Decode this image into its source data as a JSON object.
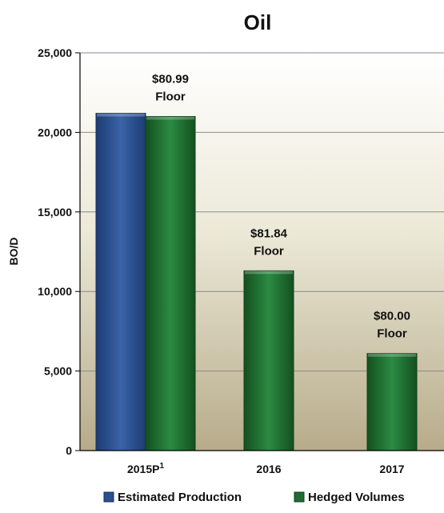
{
  "chart_data": {
    "type": "bar",
    "title": "Oil",
    "ylabel": "BO/D",
    "xlabel": "",
    "ylim": [
      0,
      25000
    ],
    "yticks": [
      "0",
      "5,000",
      "10,000",
      "15,000",
      "20,000",
      "25,000"
    ],
    "categories": [
      {
        "label": "2015P",
        "superscript": "1"
      },
      {
        "label": "2016",
        "superscript": ""
      },
      {
        "label": "2017",
        "superscript": ""
      }
    ],
    "series": [
      {
        "name": "Estimated Production",
        "color": "#2a4f8f",
        "values": [
          21200,
          null,
          null
        ]
      },
      {
        "name": "Hedged Volumes",
        "color": "#1f6b33",
        "values": [
          21000,
          11300,
          6100
        ]
      }
    ],
    "annotations": [
      {
        "category_index": 0,
        "price": "$80.99",
        "label": "Floor"
      },
      {
        "category_index": 1,
        "price": "$81.84",
        "label": "Floor"
      },
      {
        "category_index": 2,
        "price": "$80.00",
        "label": "Floor"
      }
    ],
    "grid": true,
    "legend_position": "bottom"
  }
}
